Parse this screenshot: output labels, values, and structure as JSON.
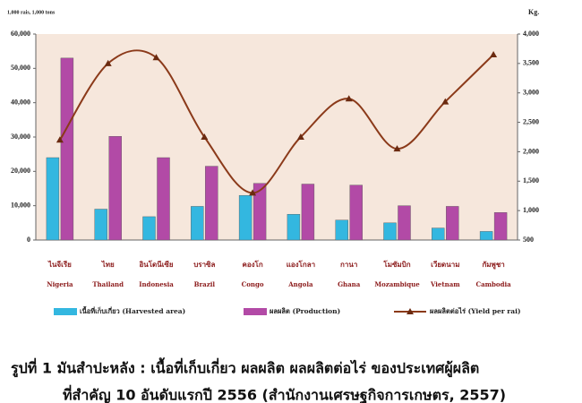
{
  "chart_data": {
    "type": "bar-line",
    "left_axis_label": "1,000 rais, 1,000 tons",
    "right_axis_label": "Kg.",
    "categories": [
      "Nigeria",
      "Thailand",
      "Indonesia",
      "Brazil",
      "Congo",
      "Angola",
      "Ghana",
      "Mozambique",
      "Vietnam",
      "Cambodia"
    ],
    "categories_thai": [
      "ไนจีเรีย",
      "ไทย",
      "อินโดนีเซีย",
      "บราซิล",
      "คองโก",
      "แองโกลา",
      "กานา",
      "โมซัมบิก",
      "เวียดนาม",
      "กัมพูชา"
    ],
    "series": [
      {
        "name": "เนื้อที่เก็บเกี่ยว (Harvested area)",
        "type": "bar",
        "color": "#33b7e0",
        "values": [
          24000,
          9000,
          6800,
          9800,
          13000,
          7500,
          5800,
          5000,
          3500,
          2500
        ]
      },
      {
        "name": "ผลผลิต (Production)",
        "type": "bar",
        "color": "#b24aa6",
        "values": [
          53000,
          30200,
          24000,
          21500,
          16500,
          16300,
          16000,
          10000,
          9800,
          8000
        ]
      },
      {
        "name": "ผลผลิตต่อไร่ (Yield per rai)",
        "type": "line",
        "axis": "y2",
        "color": "#8b3a1a",
        "values": [
          2200,
          3500,
          3600,
          2250,
          1300,
          2250,
          2900,
          2050,
          2850,
          3650
        ]
      }
    ],
    "ylim": [
      0,
      60000
    ],
    "yticks": [
      0,
      {
        "value": 10000,
        "label": "10,000"
      },
      {
        "value": 20000,
        "label": "20,000"
      },
      {
        "value": 30000,
        "label": "30,000"
      },
      {
        "value": 40000,
        "label": "40,000"
      },
      {
        "value": 50000,
        "label": "50,000"
      },
      {
        "value": 60000,
        "label": "60,000"
      }
    ],
    "y2lim": [
      500,
      4000
    ],
    "y2ticks": [
      500,
      {
        "value": 1000,
        "label": "1,000"
      },
      {
        "value": 1500,
        "label": "1,500"
      },
      {
        "value": 2000,
        "label": "2,000"
      },
      {
        "value": 2500,
        "label": "2,500"
      },
      {
        "value": 3000,
        "label": "3,000"
      },
      {
        "value": 3500,
        "label": "3,500"
      },
      {
        "value": 4000,
        "label": "4,000"
      }
    ],
    "grid": false,
    "caption": [
      "รูปที่ 1  มันสำปะหลัง : เนื้อที่เก็บเกี่ยว ผลผลิต ผลผลิตต่อไร่ ของประเทศผู้ผลิต",
      "ที่สำคัญ 10 อันดับแรกปี 2556 (สำนักงานเศรษฐกิจการเกษตร, 2557)"
    ]
  }
}
